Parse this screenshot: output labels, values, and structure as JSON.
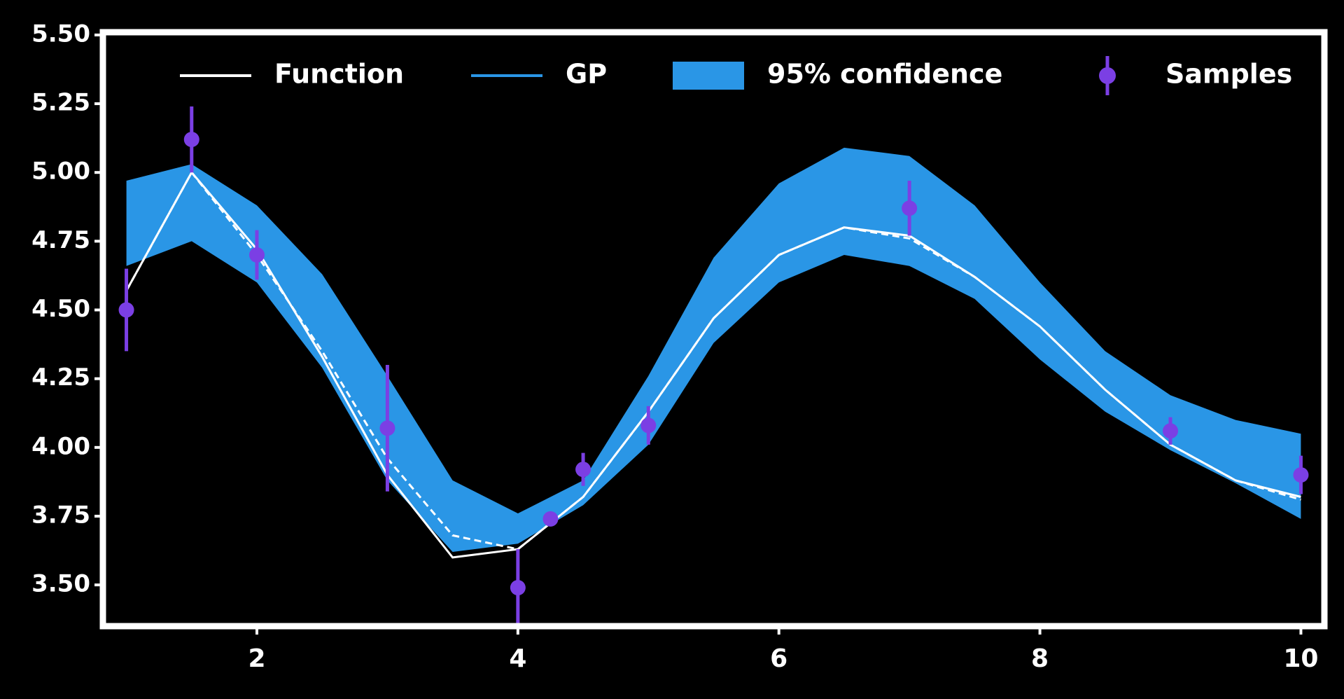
{
  "chart_data": {
    "type": "line",
    "x": [
      1,
      1.5,
      2,
      2.5,
      3,
      3.5,
      4,
      4.5,
      5,
      5.5,
      6,
      6.5,
      7,
      7.5,
      8,
      8.5,
      9,
      9.5,
      10
    ],
    "xlim": [
      0.82,
      10.18
    ],
    "xticks": [
      2,
      4,
      6,
      8,
      10
    ],
    "ylim": [
      3.35,
      5.51
    ],
    "yticks": [
      {
        "value": 3.5,
        "label": "3.50"
      },
      {
        "value": 3.75,
        "label": "3.75"
      },
      {
        "value": 4,
        "label": "4.00"
      },
      {
        "value": 4.25,
        "label": "4.25"
      },
      {
        "value": 4.5,
        "label": "4.50"
      },
      {
        "value": 4.75,
        "label": "4.75"
      },
      {
        "value": 5,
        "label": "5.00"
      },
      {
        "value": 5.25,
        "label": "5.25"
      },
      {
        "value": 5.5,
        "label": "5.50"
      }
    ],
    "legend": "top",
    "series": [
      {
        "name": "Function",
        "type": "line",
        "color": "#ffffff",
        "values": [
          4.57,
          5.0,
          4.72,
          4.33,
          3.9,
          3.6,
          3.63,
          3.82,
          4.13,
          4.47,
          4.7,
          4.8,
          4.77,
          4.62,
          4.44,
          4.21,
          4.01,
          3.88,
          3.82
        ]
      },
      {
        "name": "GP",
        "type": "line",
        "color": "#2a96e6",
        "style": "dashed",
        "values": [
          4.57,
          5.0,
          4.7,
          4.35,
          3.96,
          3.68,
          3.63,
          3.82,
          4.13,
          4.47,
          4.7,
          4.8,
          4.76,
          4.62,
          4.44,
          4.21,
          4.01,
          3.88,
          3.81
        ]
      },
      {
        "name": "95% confidence",
        "type": "band",
        "color": "#2a96e6",
        "upper": [
          4.97,
          5.03,
          4.88,
          4.63,
          4.26,
          3.88,
          3.76,
          3.88,
          4.26,
          4.69,
          4.96,
          5.09,
          5.06,
          4.88,
          4.6,
          4.35,
          4.19,
          4.1,
          4.05
        ],
        "lower": [
          4.66,
          4.75,
          4.6,
          4.29,
          3.88,
          3.62,
          3.65,
          3.79,
          4.01,
          4.38,
          4.6,
          4.7,
          4.66,
          4.54,
          4.32,
          4.13,
          3.99,
          3.87,
          3.74
        ]
      },
      {
        "name": "Samples",
        "type": "errorbar",
        "color": "#7b3fe4",
        "x": [
          1,
          1.5,
          2,
          3,
          4,
          4.25,
          4.5,
          5,
          7,
          9,
          10
        ],
        "values": [
          4.5,
          5.12,
          4.7,
          4.07,
          3.49,
          3.74,
          3.92,
          4.08,
          4.87,
          4.06,
          3.9
        ],
        "errors": [
          0.15,
          0.12,
          0.09,
          0.23,
          0.14,
          0.02,
          0.06,
          0.07,
          0.1,
          0.05,
          0.07
        ]
      }
    ]
  }
}
